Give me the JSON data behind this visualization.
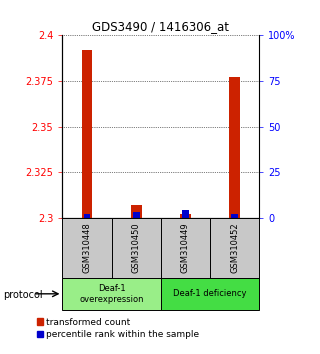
{
  "title": "GDS3490 / 1416306_at",
  "samples": [
    "GSM310448",
    "GSM310450",
    "GSM310449",
    "GSM310452"
  ],
  "transformed_counts": [
    2.392,
    2.307,
    2.302,
    2.377
  ],
  "percentile_ranks_pct": [
    2.0,
    3.0,
    4.0,
    2.0
  ],
  "ylim_left": [
    2.3,
    2.4
  ],
  "ylim_right": [
    0,
    100
  ],
  "yticks_left": [
    2.3,
    2.325,
    2.35,
    2.375,
    2.4
  ],
  "ytick_labels_left": [
    "2.3",
    "2.325",
    "2.35",
    "2.375",
    "2.4"
  ],
  "yticks_right": [
    0,
    25,
    50,
    75,
    100
  ],
  "ytick_labels_right": [
    "0",
    "25",
    "50",
    "75",
    "100%"
  ],
  "bar_color_red": "#cc2200",
  "bar_color_blue": "#0000cc",
  "protocol_groups": [
    {
      "label": "Deaf-1\noverexpression",
      "color": "#99ee88"
    },
    {
      "label": "Deaf-1 deficiency",
      "color": "#44dd44"
    }
  ],
  "sample_box_color": "#c8c8c8",
  "legend_red_label": "transformed count",
  "legend_blue_label": "percentile rank within the sample",
  "protocol_label": "protocol"
}
